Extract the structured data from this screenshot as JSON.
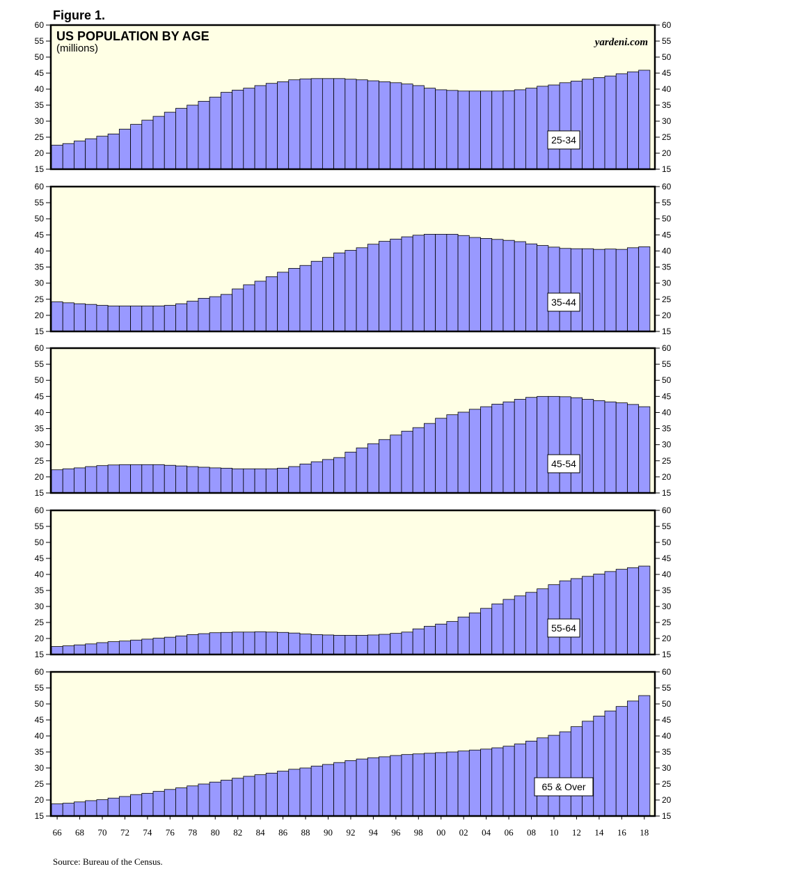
{
  "figure_label": "Figure 1.",
  "title": "US POPULATION BY AGE",
  "subtitle": "(millions)",
  "brand": "yardeni.com",
  "source": "Source: Bureau of the Census.",
  "colors": {
    "bar_fill": "#9999ff",
    "panel_bg": "#ffffe5",
    "bar_stroke": "#000000"
  },
  "chart_data": [
    {
      "type": "bar",
      "label": "25-34",
      "ylim": [
        15,
        60
      ],
      "yticks": [
        15,
        20,
        25,
        30,
        35,
        40,
        45,
        50,
        55,
        60
      ],
      "x": [
        1966,
        1967,
        1968,
        1969,
        1970,
        1971,
        1972,
        1973,
        1974,
        1975,
        1976,
        1977,
        1978,
        1979,
        1980,
        1981,
        1982,
        1983,
        1984,
        1985,
        1986,
        1987,
        1988,
        1989,
        1990,
        1991,
        1992,
        1993,
        1994,
        1995,
        1996,
        1997,
        1998,
        1999,
        2000,
        2001,
        2002,
        2003,
        2004,
        2005,
        2006,
        2007,
        2008,
        2009,
        2010,
        2011,
        2012,
        2013,
        2014,
        2015,
        2016,
        2017,
        2018
      ],
      "values": [
        22.5,
        23.0,
        23.8,
        24.5,
        25.3,
        26.0,
        27.5,
        29.0,
        30.3,
        31.5,
        32.8,
        34.0,
        35.0,
        36.2,
        37.5,
        39.0,
        39.7,
        40.3,
        41.1,
        41.8,
        42.3,
        42.9,
        43.2,
        43.3,
        43.3,
        43.3,
        43.1,
        42.9,
        42.6,
        42.3,
        42.0,
        41.6,
        41.1,
        40.3,
        39.8,
        39.6,
        39.4,
        39.4,
        39.4,
        39.4,
        39.5,
        39.8,
        40.3,
        40.9,
        41.3,
        42.0,
        42.5,
        43.1,
        43.6,
        44.1,
        44.8,
        45.4,
        45.9
      ]
    },
    {
      "type": "bar",
      "label": "35-44",
      "ylim": [
        15,
        60
      ],
      "yticks": [
        15,
        20,
        25,
        30,
        35,
        40,
        45,
        50,
        55,
        60
      ],
      "x": [
        1966,
        1967,
        1968,
        1969,
        1970,
        1971,
        1972,
        1973,
        1974,
        1975,
        1976,
        1977,
        1978,
        1979,
        1980,
        1981,
        1982,
        1983,
        1984,
        1985,
        1986,
        1987,
        1988,
        1989,
        1990,
        1991,
        1992,
        1993,
        1994,
        1995,
        1996,
        1997,
        1998,
        1999,
        2000,
        2001,
        2002,
        2003,
        2004,
        2005,
        2006,
        2007,
        2008,
        2009,
        2010,
        2011,
        2012,
        2013,
        2014,
        2015,
        2016,
        2017,
        2018
      ],
      "values": [
        24.2,
        23.9,
        23.6,
        23.4,
        23.1,
        22.9,
        22.9,
        22.9,
        22.9,
        22.9,
        23.1,
        23.6,
        24.4,
        25.3,
        25.8,
        26.5,
        28.2,
        29.5,
        30.6,
        32.0,
        33.4,
        34.6,
        35.5,
        36.8,
        38.0,
        39.4,
        40.2,
        41.0,
        42.1,
        43.0,
        43.7,
        44.4,
        44.9,
        45.2,
        45.2,
        45.2,
        44.8,
        44.2,
        43.9,
        43.6,
        43.3,
        42.9,
        42.2,
        41.7,
        41.2,
        40.8,
        40.7,
        40.7,
        40.5,
        40.6,
        40.5,
        41.0,
        41.3
      ]
    },
    {
      "type": "bar",
      "label": "45-54",
      "ylim": [
        15,
        60
      ],
      "yticks": [
        15,
        20,
        25,
        30,
        35,
        40,
        45,
        50,
        55,
        60
      ],
      "x": [
        1966,
        1967,
        1968,
        1969,
        1970,
        1971,
        1972,
        1973,
        1974,
        1975,
        1976,
        1977,
        1978,
        1979,
        1980,
        1981,
        1982,
        1983,
        1984,
        1985,
        1986,
        1987,
        1988,
        1989,
        1990,
        1991,
        1992,
        1993,
        1994,
        1995,
        1996,
        1997,
        1998,
        1999,
        2000,
        2001,
        2002,
        2003,
        2004,
        2005,
        2006,
        2007,
        2008,
        2009,
        2010,
        2011,
        2012,
        2013,
        2014,
        2015,
        2016,
        2017,
        2018
      ],
      "values": [
        22.2,
        22.5,
        22.8,
        23.2,
        23.5,
        23.7,
        23.8,
        23.8,
        23.8,
        23.8,
        23.6,
        23.4,
        23.2,
        23.0,
        22.8,
        22.7,
        22.5,
        22.5,
        22.5,
        22.5,
        22.7,
        23.2,
        24.0,
        24.7,
        25.4,
        26.0,
        27.7,
        29.0,
        30.3,
        31.6,
        33.0,
        34.2,
        35.3,
        36.6,
        38.2,
        39.3,
        40.1,
        41.0,
        41.8,
        42.6,
        43.3,
        44.1,
        44.7,
        45.0,
        45.0,
        44.9,
        44.6,
        44.1,
        43.7,
        43.3,
        43.0,
        42.5,
        41.8
      ]
    },
    {
      "type": "bar",
      "label": "55-64",
      "ylim": [
        15,
        60
      ],
      "yticks": [
        15,
        20,
        25,
        30,
        35,
        40,
        45,
        50,
        55,
        60
      ],
      "x": [
        1966,
        1967,
        1968,
        1969,
        1970,
        1971,
        1972,
        1973,
        1974,
        1975,
        1976,
        1977,
        1978,
        1979,
        1980,
        1981,
        1982,
        1983,
        1984,
        1985,
        1986,
        1987,
        1988,
        1989,
        1990,
        1991,
        1992,
        1993,
        1994,
        1995,
        1996,
        1997,
        1998,
        1999,
        2000,
        2001,
        2002,
        2003,
        2004,
        2005,
        2006,
        2007,
        2008,
        2009,
        2010,
        2011,
        2012,
        2013,
        2014,
        2015,
        2016,
        2017,
        2018
      ],
      "values": [
        17.5,
        17.7,
        18.0,
        18.3,
        18.7,
        19.0,
        19.2,
        19.5,
        19.8,
        20.1,
        20.4,
        20.8,
        21.2,
        21.5,
        21.8,
        21.9,
        22.0,
        22.0,
        22.1,
        22.0,
        21.9,
        21.7,
        21.4,
        21.2,
        21.1,
        21.0,
        21.0,
        21.0,
        21.1,
        21.3,
        21.6,
        22.0,
        23.0,
        23.8,
        24.5,
        25.3,
        26.7,
        28.0,
        29.4,
        30.8,
        32.2,
        33.3,
        34.4,
        35.5,
        36.8,
        38.0,
        38.7,
        39.4,
        40.1,
        40.9,
        41.6,
        42.1,
        42.6
      ]
    },
    {
      "type": "bar",
      "label": "65 & Over",
      "ylim": [
        15,
        60
      ],
      "yticks": [
        15,
        20,
        25,
        30,
        35,
        40,
        45,
        50,
        55,
        60
      ],
      "x": [
        1966,
        1967,
        1968,
        1969,
        1970,
        1971,
        1972,
        1973,
        1974,
        1975,
        1976,
        1977,
        1978,
        1979,
        1980,
        1981,
        1982,
        1983,
        1984,
        1985,
        1986,
        1987,
        1988,
        1989,
        1990,
        1991,
        1992,
        1993,
        1994,
        1995,
        1996,
        1997,
        1998,
        1999,
        2000,
        2001,
        2002,
        2003,
        2004,
        2005,
        2006,
        2007,
        2008,
        2009,
        2010,
        2011,
        2012,
        2013,
        2014,
        2015,
        2016,
        2017,
        2018
      ],
      "values": [
        18.8,
        19.0,
        19.4,
        19.8,
        20.1,
        20.6,
        21.1,
        21.7,
        22.1,
        22.7,
        23.3,
        23.8,
        24.4,
        25.0,
        25.6,
        26.2,
        26.8,
        27.4,
        27.9,
        28.4,
        29.0,
        29.6,
        30.0,
        30.6,
        31.1,
        31.7,
        32.3,
        32.8,
        33.2,
        33.5,
        33.9,
        34.2,
        34.4,
        34.6,
        34.8,
        35.0,
        35.3,
        35.6,
        35.9,
        36.3,
        36.8,
        37.5,
        38.4,
        39.4,
        40.2,
        41.3,
        42.9,
        44.6,
        46.2,
        47.8,
        49.2,
        50.9,
        52.6
      ]
    }
  ],
  "x_tick_labels": [
    "66",
    "68",
    "70",
    "72",
    "74",
    "76",
    "78",
    "80",
    "82",
    "84",
    "86",
    "88",
    "90",
    "92",
    "94",
    "96",
    "98",
    "00",
    "02",
    "04",
    "06",
    "08",
    "10",
    "12",
    "14",
    "16",
    "18"
  ]
}
